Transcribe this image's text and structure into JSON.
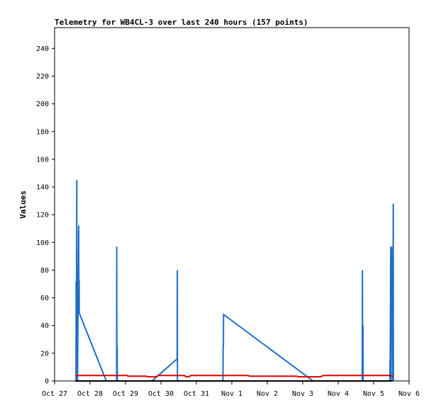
{
  "chart_data": {
    "type": "line",
    "title": "Telemetry for WB4CL-3 over last 240 hours (157 points)",
    "xlabel": "",
    "ylabel": "Values",
    "xlim": [
      0,
      240
    ],
    "ylim": [
      0,
      255
    ],
    "grid": false,
    "x_ticks": [
      {
        "x": 0,
        "label": "Oct 27"
      },
      {
        "x": 24,
        "label": "Oct 28"
      },
      {
        "x": 48,
        "label": "Oct 29"
      },
      {
        "x": 72,
        "label": "Oct 30"
      },
      {
        "x": 96,
        "label": "Oct 31"
      },
      {
        "x": 120,
        "label": "Nov 1"
      },
      {
        "x": 144,
        "label": "Nov 2"
      },
      {
        "x": 168,
        "label": "Nov 3"
      },
      {
        "x": 192,
        "label": "Nov 4"
      },
      {
        "x": 216,
        "label": "Nov 5"
      },
      {
        "x": 240,
        "label": "Nov 6"
      }
    ],
    "y_ticks": [
      0,
      20,
      40,
      60,
      80,
      100,
      120,
      140,
      160,
      180,
      200,
      220,
      240
    ],
    "series": [
      {
        "color": "#1f6fc5",
        "points": [
          [
            14.5,
            0
          ],
          [
            14.6,
            72
          ],
          [
            14.7,
            0
          ],
          [
            15.0,
            145
          ],
          [
            15.1,
            0
          ],
          [
            15.4,
            72
          ],
          [
            15.5,
            0
          ],
          [
            16.3,
            112
          ],
          [
            16.4,
            49
          ],
          [
            16.6,
            73
          ],
          [
            16.7,
            49
          ],
          [
            35.0,
            0
          ],
          [
            35.5,
            0
          ],
          [
            42.0,
            0
          ],
          [
            42.1,
            97
          ],
          [
            42.2,
            0
          ],
          [
            42.4,
            25
          ],
          [
            42.5,
            0
          ],
          [
            66.0,
            0
          ],
          [
            83.0,
            16
          ],
          [
            83.1,
            80
          ],
          [
            83.2,
            0
          ],
          [
            114.0,
            0
          ],
          [
            114.1,
            25
          ],
          [
            114.3,
            25
          ],
          [
            114.4,
            48
          ],
          [
            175.0,
            0
          ],
          [
            175.5,
            0
          ],
          [
            208.3,
            0
          ],
          [
            208.4,
            80
          ],
          [
            208.6,
            0
          ],
          [
            208.8,
            40
          ],
          [
            208.9,
            0
          ],
          [
            227.0,
            0
          ],
          [
            227.1,
            16
          ],
          [
            227.2,
            0
          ],
          [
            227.5,
            80
          ],
          [
            227.6,
            97
          ],
          [
            227.7,
            60
          ],
          [
            227.8,
            0
          ],
          [
            228.2,
            97
          ],
          [
            228.4,
            60
          ],
          [
            228.6,
            40
          ],
          [
            228.8,
            56
          ],
          [
            229.0,
            0
          ],
          [
            229.3,
            128
          ],
          [
            229.4,
            0
          ]
        ]
      },
      {
        "color": "#e00000",
        "points": [
          [
            14,
            4
          ],
          [
            49,
            4
          ],
          [
            50,
            3.5
          ],
          [
            62,
            3.5
          ],
          [
            63,
            3
          ],
          [
            69,
            3
          ],
          [
            70,
            4
          ],
          [
            88,
            4
          ],
          [
            89,
            3
          ],
          [
            91,
            3
          ],
          [
            92,
            4
          ],
          [
            114,
            4
          ],
          [
            115,
            4
          ],
          [
            131,
            4
          ],
          [
            132,
            3.5
          ],
          [
            164,
            3.5
          ],
          [
            165,
            3
          ],
          [
            180,
            3
          ],
          [
            182,
            4
          ],
          [
            209,
            4
          ],
          [
            210,
            4
          ],
          [
            228,
            4
          ],
          [
            229,
            3
          ]
        ]
      },
      {
        "color": "#000000",
        "points": [
          [
            14,
            0
          ],
          [
            229,
            0
          ]
        ]
      }
    ]
  }
}
